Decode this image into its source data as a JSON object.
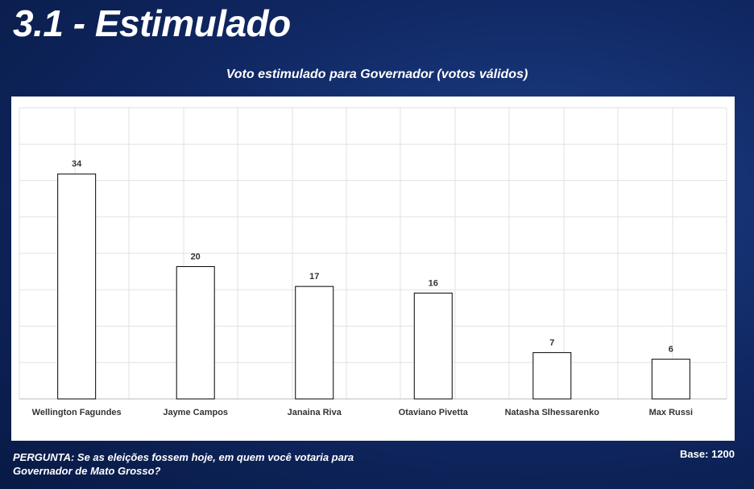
{
  "page_title": "3.1 - Estimulado",
  "chart_data": {
    "type": "bar",
    "title": "Voto estimulado para Governador (votos válidos)",
    "categories": [
      "Wellington Fagundes",
      "Jayme Campos",
      "Janaina Riva",
      "Otaviano Pivetta",
      "Natasha Slhessarenko",
      "Max Russi"
    ],
    "values": [
      34,
      20,
      17,
      16,
      7,
      6
    ],
    "color": "#ffffff",
    "ylim": [
      0,
      44
    ],
    "yticks": [
      0,
      5.5,
      11,
      16.5,
      22,
      27.5,
      33,
      38.5,
      44
    ],
    "grid": true
  },
  "footer": {
    "question": "PERGUNTA:  Se as eleições fossem hoje, em quem você votaria para Governador de Mato Grosso?",
    "base": "Base: 1200"
  }
}
